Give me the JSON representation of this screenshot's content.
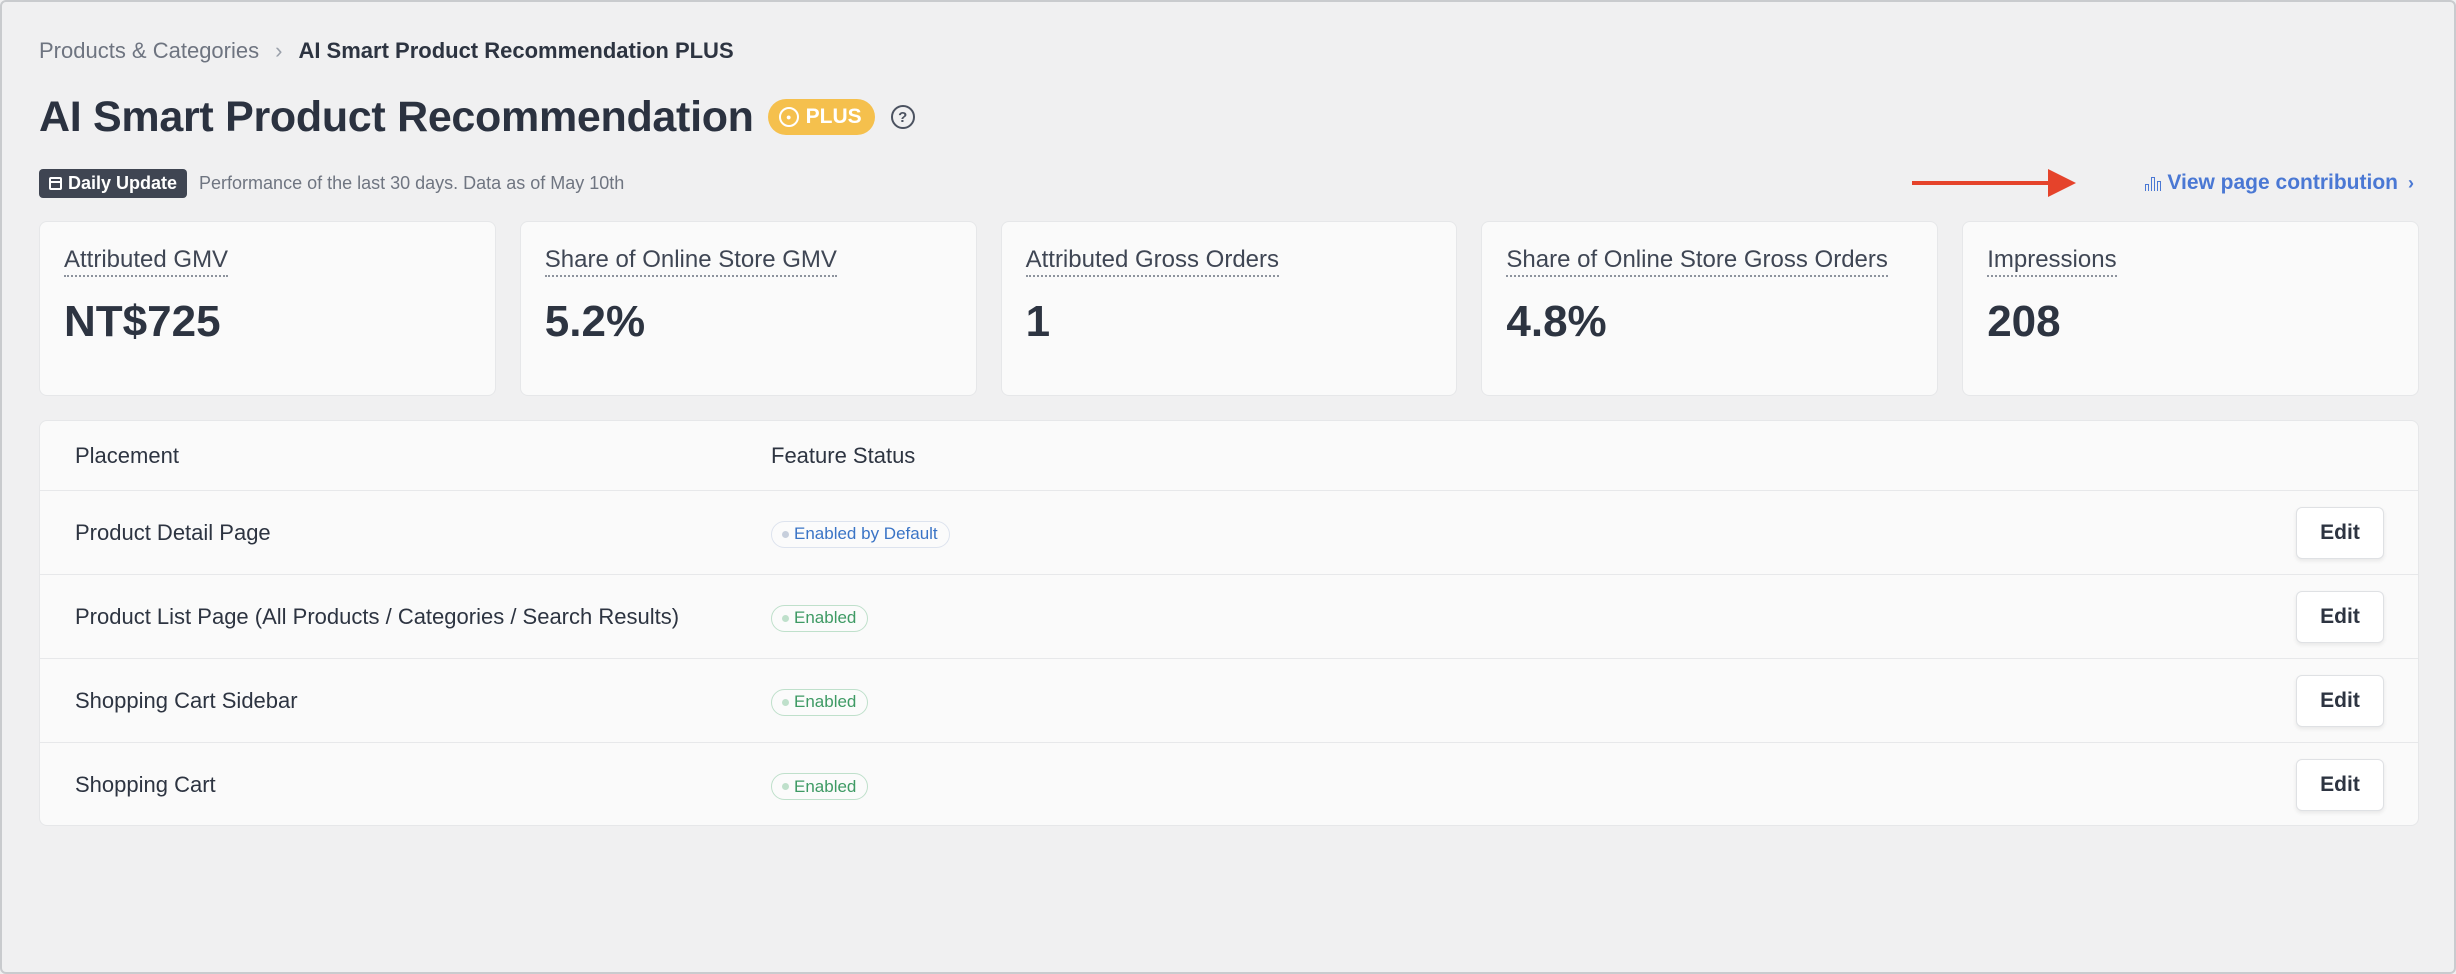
{
  "breadcrumb": {
    "parent": "Products & Categories",
    "separator": "›",
    "current": "AI Smart Product Recommendation PLUS"
  },
  "header": {
    "title": "AI Smart Product Recommendation",
    "badge": "PLUS",
    "help_icon": "question-circle-icon"
  },
  "info": {
    "badge": "Daily Update",
    "text": "Performance of the last 30 days. Data as of May 10th",
    "contribution_link": "View page contribution",
    "contribution_chevron": "›"
  },
  "metrics": [
    {
      "label": "Attributed GMV",
      "value": "NT$725"
    },
    {
      "label": "Share of Online Store GMV",
      "value": "5.2%"
    },
    {
      "label": "Attributed Gross Orders",
      "value": "1"
    },
    {
      "label": "Share of Online Store Gross Orders",
      "value": "4.8%"
    },
    {
      "label": "Impressions",
      "value": "208"
    }
  ],
  "table": {
    "headers": {
      "placement": "Placement",
      "status": "Feature Status"
    },
    "rows": [
      {
        "placement": "Product Detail Page",
        "status": "Enabled by Default",
        "action": "Edit"
      },
      {
        "placement": "Product List Page (All Products / Categories / Search Results)",
        "status": "Enabled",
        "action": "Edit"
      },
      {
        "placement": "Shopping Cart Sidebar",
        "status": "Enabled",
        "action": "Edit"
      },
      {
        "placement": "Shopping Cart",
        "status": "Enabled",
        "action": "Edit"
      }
    ]
  },
  "colors": {
    "accent_link": "#4a78d4",
    "plus_badge": "#f5c04d",
    "annotation_arrow": "#e5432b",
    "enabled_text": "#3e9a64",
    "default_text": "#3a74c6"
  }
}
